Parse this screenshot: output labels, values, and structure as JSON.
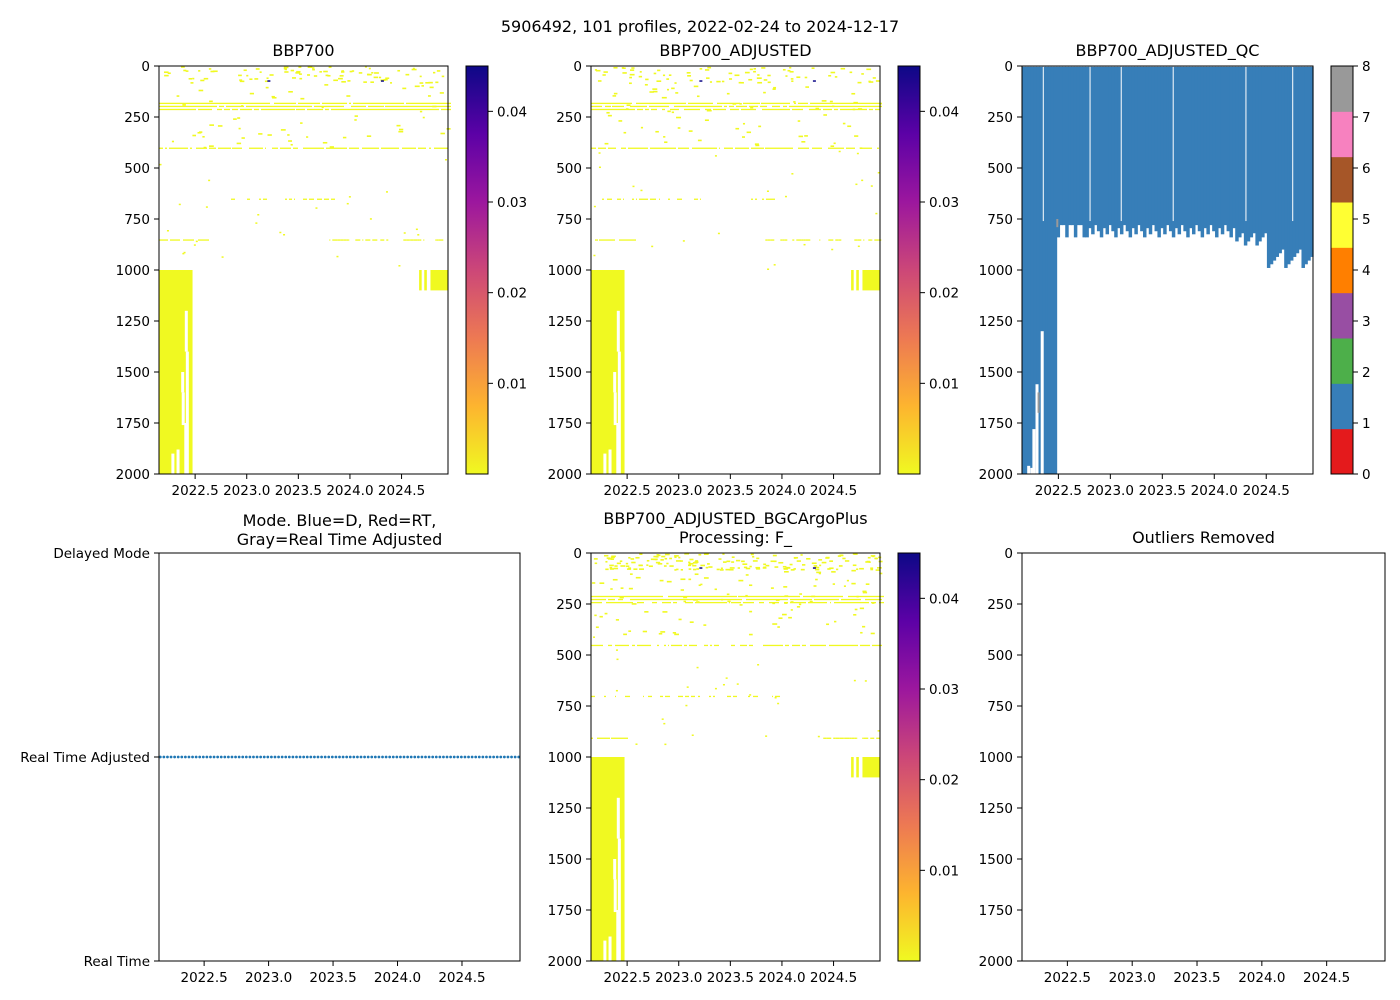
{
  "suptitle": "5906492, 101 profiles, 2022-02-24 to 2024-12-17",
  "colors": {
    "background": "#ffffff",
    "axis": "#000000",
    "bbp_speck": "#f0f921",
    "mode_line": "#1f77b4",
    "qc_fill": "#377eb8",
    "plasma": [
      "#f0f921",
      "#fdb42f",
      "#ed7953",
      "#cc4778",
      "#9c179e",
      "#5c01a6",
      "#0d0887"
    ],
    "qc_cmap": [
      "#e41a1c",
      "#377eb8",
      "#4daf4a",
      "#984ea3",
      "#ff7f00",
      "#ffff33",
      "#a65628",
      "#f781bf",
      "#999999"
    ]
  },
  "chart_data": [
    {
      "id": "bbp700",
      "type": "heatmap",
      "title": "BBP700",
      "xlim": [
        2022.15,
        2024.95
      ],
      "ylim": [
        2000,
        0
      ],
      "xticks": [
        "2022.5",
        "2023.0",
        "2023.5",
        "2024.0",
        "2024.5"
      ],
      "yticks": [
        "0",
        "250",
        "500",
        "750",
        "1000",
        "1250",
        "1500",
        "1750",
        "2000"
      ],
      "colorbar": {
        "range": [
          0.0,
          0.045
        ],
        "ticks": [
          "0.01",
          "0.02",
          "0.03",
          "0.04"
        ]
      },
      "notes": "Most values near 0 (yellow); deep profiles to 2000 dbar in early 2022; sparse layers near 200, 400, 650, 850 dbar"
    },
    {
      "id": "bbp700_adj",
      "type": "heatmap",
      "title": "BBP700_ADJUSTED",
      "xlim": [
        2022.15,
        2024.95
      ],
      "ylim": [
        2000,
        0
      ],
      "xticks": [
        "2022.5",
        "2023.0",
        "2023.5",
        "2024.0",
        "2024.5"
      ],
      "yticks": [
        "0",
        "250",
        "500",
        "750",
        "1000",
        "1250",
        "1500",
        "1750",
        "2000"
      ],
      "colorbar": {
        "range": [
          0.0,
          0.045
        ],
        "ticks": [
          "0.01",
          "0.02",
          "0.03",
          "0.04"
        ]
      }
    },
    {
      "id": "bbp700_qc",
      "type": "heatmap",
      "title": "BBP700_ADJUSTED_QC",
      "xlim": [
        2022.15,
        2024.95
      ],
      "ylim": [
        2000,
        0
      ],
      "xticks": [
        "2022.5",
        "2023.0",
        "2023.5",
        "2024.0",
        "2024.5"
      ],
      "yticks": [
        "0",
        "250",
        "500",
        "750",
        "1000",
        "1250",
        "1500",
        "1750",
        "2000"
      ],
      "colorbar": {
        "categories": [
          "0",
          "1",
          "2",
          "3",
          "4",
          "5",
          "6",
          "7",
          "8"
        ]
      },
      "notes": "Almost all data flagged 1 (blue); profile bottom depth ~780-1000 dbar after mid-2022, to 2000 dbar before"
    },
    {
      "id": "mode",
      "type": "line",
      "title_lines": [
        "Mode. Blue=D, Red=RT,",
        "Gray=Real Time Adjusted"
      ],
      "xlim": [
        2022.15,
        2024.95
      ],
      "xticks": [
        "2022.5",
        "2023.0",
        "2023.5",
        "2024.0",
        "2024.5"
      ],
      "ytick_labels": [
        "Delayed Mode",
        "Real Time Adjusted",
        "Real Time"
      ],
      "series": [
        {
          "name": "mode",
          "value": "Real Time Adjusted",
          "points": 101
        }
      ]
    },
    {
      "id": "bgc",
      "type": "heatmap",
      "title_lines": [
        "BBP700_ADJUSTED_BGCArgoPlus",
        "Processing: F_"
      ],
      "xlim": [
        2022.15,
        2024.95
      ],
      "ylim": [
        2000,
        0
      ],
      "xticks": [
        "2022.5",
        "2023.0",
        "2023.5",
        "2024.0",
        "2024.5"
      ],
      "yticks": [
        "0",
        "250",
        "500",
        "750",
        "1000",
        "1250",
        "1500",
        "1750",
        "2000"
      ],
      "colorbar": {
        "range": [
          0.0,
          0.045
        ],
        "ticks": [
          "0.01",
          "0.02",
          "0.03",
          "0.04"
        ]
      }
    },
    {
      "id": "outliers",
      "type": "scatter",
      "title": "Outliers Removed",
      "xlim": [
        2022.15,
        2024.95
      ],
      "ylim": [
        2000,
        0
      ],
      "xticks": [
        "2022.5",
        "2023.0",
        "2023.5",
        "2024.0",
        "2024.5"
      ],
      "yticks": [
        "0",
        "250",
        "500",
        "750",
        "1000",
        "1250",
        "1500",
        "1750",
        "2000"
      ],
      "points": []
    }
  ]
}
